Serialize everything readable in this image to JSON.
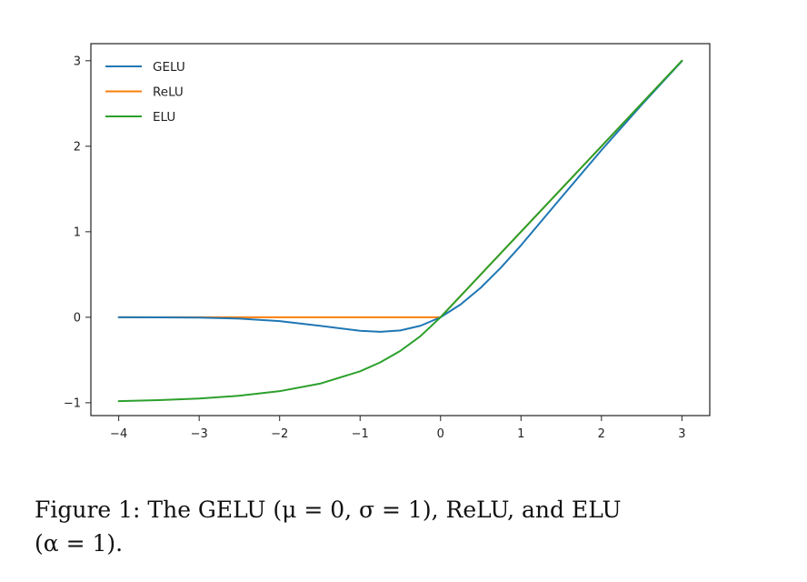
{
  "caption": {
    "line1": "Figure 1: The GELU (μ = 0, σ = 1), ReLU, and ELU",
    "line2": "(α = 1)."
  },
  "chart_data": {
    "type": "line",
    "title": "",
    "xlabel": "",
    "ylabel": "",
    "xlim": [
      -4,
      3
    ],
    "ylim": [
      -1.15,
      3.2
    ],
    "grid": false,
    "legend": "top-left",
    "x_ticks": [
      -4,
      -3,
      -2,
      -1,
      0,
      1,
      2,
      3
    ],
    "x_tick_labels": [
      "−4",
      "−3",
      "−2",
      "−1",
      "0",
      "1",
      "2",
      "3"
    ],
    "y_ticks": [
      -1,
      0,
      1,
      2,
      3
    ],
    "y_tick_labels": [
      "−1",
      "0",
      "1",
      "2",
      "3"
    ],
    "x": [
      -4,
      -3.5,
      -3,
      -2.5,
      -2,
      -1.5,
      -1,
      -0.75,
      -0.5,
      -0.25,
      0,
      0.25,
      0.5,
      0.75,
      1,
      1.5,
      2,
      2.5,
      3
    ],
    "series": [
      {
        "name": "GELU",
        "color": "#1f77b4",
        "values": [
          -0.0001,
          -0.0008,
          -0.004,
          -0.0155,
          -0.0455,
          -0.1002,
          -0.1587,
          -0.17,
          -0.1543,
          -0.0998,
          0,
          0.1502,
          0.3457,
          0.58,
          0.8413,
          1.3998,
          1.9545,
          2.4845,
          2.996
        ]
      },
      {
        "name": "ReLU",
        "color": "#ff7f0e",
        "values": [
          0,
          0,
          0,
          0,
          0,
          0,
          0,
          0,
          0,
          0,
          0,
          0.25,
          0.5,
          0.75,
          1,
          1.5,
          2,
          2.5,
          3
        ]
      },
      {
        "name": "ELU",
        "color": "#2ca02c",
        "values": [
          -0.9817,
          -0.9698,
          -0.9502,
          -0.9179,
          -0.8647,
          -0.7769,
          -0.6321,
          -0.5276,
          -0.3935,
          -0.2212,
          0,
          0.25,
          0.5,
          0.75,
          1,
          1.5,
          2,
          2.5,
          3
        ]
      }
    ]
  }
}
